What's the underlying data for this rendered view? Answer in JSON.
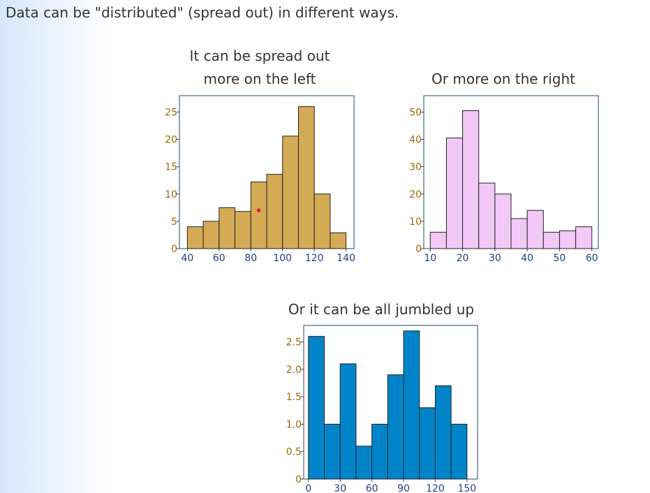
{
  "intro_text": "Data can be \"distributed\" (spread out) in different ways.",
  "chart_data": [
    {
      "type": "bar",
      "title": "It can be spread out more on the left",
      "title_lines": [
        "It can be spread out",
        "more on the left"
      ],
      "bin_edges": [
        40,
        50,
        60,
        70,
        80,
        90,
        100,
        110,
        120,
        130,
        140
      ],
      "values": [
        4,
        5,
        7.5,
        6.8,
        12.2,
        13.6,
        20.6,
        26,
        10,
        2.9
      ],
      "xlim": [
        35,
        145
      ],
      "ylim": [
        0,
        28
      ],
      "xticks": [
        40,
        60,
        80,
        100,
        120,
        140
      ],
      "xtick_labels": [
        "40",
        "60",
        "80",
        "100",
        "120",
        "140"
      ],
      "yticks": [
        0,
        5,
        10,
        15,
        20,
        25
      ],
      "ytick_labels": [
        "0",
        "5",
        "10",
        "15",
        "20",
        "25"
      ],
      "bar_color": "#d4aa55",
      "marker": {
        "x": 85,
        "y": 7,
        "color": "#e02020"
      }
    },
    {
      "type": "bar",
      "title": "Or more on the right",
      "title_lines": [
        "Or more on the right"
      ],
      "bin_edges": [
        10,
        15,
        20,
        25,
        30,
        35,
        40,
        45,
        50,
        55,
        60
      ],
      "values": [
        6,
        40.5,
        50.5,
        24,
        20,
        11,
        14,
        6,
        6.5,
        8
      ],
      "xlim": [
        8,
        62
      ],
      "ylim": [
        0,
        56
      ],
      "xticks": [
        10,
        20,
        30,
        40,
        50,
        60
      ],
      "xtick_labels": [
        "10",
        "20",
        "30",
        "40",
        "50",
        "60"
      ],
      "yticks": [
        0,
        10,
        20,
        30,
        40,
        50
      ],
      "ytick_labels": [
        "0",
        "10",
        "20",
        "30",
        "40",
        "50"
      ],
      "bar_color": "#f2c8f7"
    },
    {
      "type": "bar",
      "title": "Or it can be all jumbled up",
      "title_lines": [
        "Or it can be all jumbled up"
      ],
      "bin_edges": [
        0,
        15,
        30,
        45,
        60,
        75,
        90,
        105,
        120,
        135,
        150
      ],
      "values": [
        2.6,
        1,
        2.1,
        0.6,
        1,
        1.9,
        2.7,
        1.3,
        1.7,
        1
      ],
      "xlim": [
        -4.5,
        160
      ],
      "ylim": [
        0,
        2.8
      ],
      "xticks": [
        0,
        30,
        60,
        90,
        120,
        150
      ],
      "xtick_labels": [
        "0",
        "30",
        "60",
        "90",
        "120",
        "150"
      ],
      "yticks": [
        0,
        0.5,
        1,
        1.5,
        2,
        2.5
      ],
      "ytick_labels": [
        "0",
        "0.5",
        "1.0",
        "1.5",
        "2.0",
        "2.5"
      ],
      "bar_color": "#0184c9"
    }
  ],
  "colors": {
    "tick_y": "#9a6a00",
    "tick_x": "#1f3f80",
    "frame": "#22476a",
    "bar_outline": "#222222",
    "title": "#333333"
  }
}
